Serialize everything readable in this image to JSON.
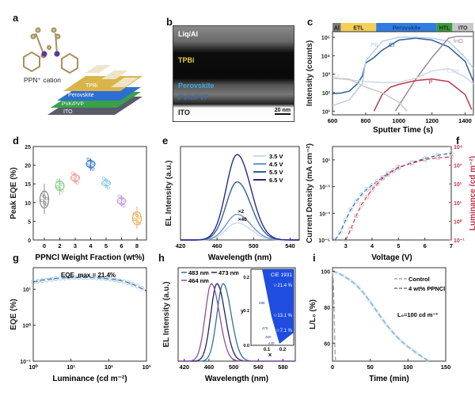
{
  "figure": {
    "panels": {
      "a": {
        "label": "a",
        "cation_label": "PPN⁺ cation",
        "layers": [
          "TPBi",
          "Perovskite",
          "PVK/PVP",
          "ITO"
        ],
        "layer_colors": [
          "#d9b44a",
          "#2d6fd0",
          "#3aa04a",
          "#5a5a6a"
        ]
      },
      "b": {
        "label": "b",
        "layers": [
          "Liq/Al",
          "TPBi",
          "Perovskite",
          "PVK/PVP",
          "ITO"
        ],
        "layer_text_colors": [
          "#ffffff",
          "#e8d23a",
          "#3fa6e0",
          "#3a7c3a",
          "#111111"
        ],
        "scalebar": "20 nm"
      },
      "c": {
        "label": "c",
        "layer_bar": [
          {
            "name": "Al",
            "color": "#7a7a7a"
          },
          {
            "name": "ETL",
            "color": "#f4cf57"
          },
          {
            "name": "Perovskite",
            "color": "#2f7de0"
          },
          {
            "name": "HTL",
            "color": "#3a9b3a"
          },
          {
            "name": "ITO",
            "color": "#c8c8c8"
          }
        ]
      },
      "d": {
        "label": "d"
      },
      "e": {
        "label": "e",
        "annotations": [
          "×2",
          "×40"
        ]
      },
      "f": {
        "label": "f"
      },
      "g": {
        "label": "g",
        "annotation": "EQE_max = 21.4%"
      },
      "h": {
        "label": "h",
        "inset": {
          "title": "CIE 1931",
          "xlabel": "x",
          "ylabel": "y",
          "xticks": [
            "0.1",
            "0.2"
          ],
          "yticks": [
            "0.0",
            "0.1",
            "0.2"
          ],
          "wavelength_marks": [
            "485",
            "470",
            "460",
            "440"
          ],
          "eqe_stars": [
            "21.4 %",
            "13.1 %",
            "7.1 %"
          ]
        }
      },
      "i": {
        "label": "i",
        "annotation": "L₀=100 cd m⁻²"
      }
    }
  },
  "chart_data": [
    {
      "id": "c",
      "type": "line",
      "xlabel": "Sputter Time (s)",
      "ylabel": "Intensity (counts)",
      "xlim": [
        600,
        1450
      ],
      "ylim_log10": [
        0.8,
        5.3
      ],
      "xticks": [
        "600",
        "800",
        "1000",
        "1200",
        "1400"
      ],
      "yticks": [
        "10¹",
        "10²",
        "10³",
        "10⁴",
        "10⁵"
      ],
      "series": [
        {
          "name": "Cl",
          "color": "#2a5e9a",
          "x": [
            600,
            650,
            700,
            750,
            780,
            800,
            850,
            900,
            1000,
            1100,
            1200,
            1300,
            1400,
            1450
          ],
          "y": [
            90,
            95,
            120,
            300,
            800,
            4000,
            8000,
            20000,
            70000,
            90000,
            70000,
            30000,
            5000,
            400
          ]
        },
        {
          "name": "Pb",
          "color": "#b8cde8",
          "x": [
            600,
            700,
            780,
            800,
            900,
            1000,
            1100,
            1200,
            1300,
            1400,
            1450
          ],
          "y": [
            20,
            40,
            300,
            5000,
            60000,
            100000,
            100000,
            90000,
            60000,
            8000,
            2000
          ]
        },
        {
          "name": "InO",
          "color": "#9a8aa0",
          "x": [
            980,
            1000,
            1100,
            1200,
            1300,
            1350,
            1450
          ],
          "y": [
            10,
            20,
            500,
            8000,
            90000,
            110000,
            110000
          ]
        },
        {
          "name": "C3H",
          "color": "#cfd6e6",
          "x": [
            600,
            700,
            800,
            900,
            1000,
            1100,
            1200,
            1300,
            1400,
            1450
          ],
          "y": [
            600,
            500,
            400,
            350,
            350,
            600,
            1500,
            2000,
            700,
            300
          ]
        },
        {
          "name": "P",
          "color": "#c0374a",
          "x": [
            850,
            900,
            950,
            1000,
            1100,
            1200,
            1300,
            1400,
            1440
          ],
          "y": [
            10,
            80,
            200,
            280,
            450,
            550,
            400,
            80,
            12
          ]
        },
        {
          "name": "Li",
          "color": "#c8c8c8",
          "x": [
            600,
            700,
            800,
            900,
            1000,
            1050
          ],
          "y": [
            600,
            550,
            200,
            100,
            30,
            10
          ]
        }
      ]
    },
    {
      "id": "d",
      "type": "scatter",
      "xlabel": "PPNCl Weight Fraction (wt%)",
      "ylabel": "Peak EQE (%)",
      "categories": [
        "0",
        "2",
        "3",
        "4",
        "5",
        "6",
        "8"
      ],
      "ylim": [
        0,
        25
      ],
      "yticks": [
        "0",
        "5",
        "10",
        "15",
        "20",
        "25"
      ],
      "series": [
        {
          "name": "0",
          "color": "#888888",
          "mean": 10.8,
          "min": 7,
          "max": 15
        },
        {
          "name": "2",
          "color": "#8fd08f",
          "mean": 14.5,
          "min": 12,
          "max": 16.5
        },
        {
          "name": "3",
          "color": "#f0a0a0",
          "mean": 16.6,
          "min": 15,
          "max": 18
        },
        {
          "name": "4",
          "color": "#3a7fd0",
          "mean": 20.3,
          "min": 18.5,
          "max": 21.8
        },
        {
          "name": "5",
          "color": "#8ec8ea",
          "mean": 15.2,
          "min": 14,
          "max": 16.5
        },
        {
          "name": "6",
          "color": "#c8a0e0",
          "mean": 10.4,
          "min": 9,
          "max": 12
        },
        {
          "name": "8",
          "color": "#f0b060",
          "mean": 5.8,
          "min": 3,
          "max": 9
        }
      ]
    },
    {
      "id": "e",
      "type": "line",
      "xlabel": "Wavelength (nm)",
      "ylabel": "EL Intensity (a.u.)",
      "xlim": [
        420,
        550
      ],
      "xticks": [
        "420",
        "460",
        "500",
        "540"
      ],
      "peak_nm": 482,
      "series": [
        {
          "name": "3.5 V",
          "color": "#c8dcee",
          "relative_peak": 0.2
        },
        {
          "name": "4.5 V",
          "color": "#6a9ac8",
          "relative_peak": 0.3
        },
        {
          "name": "5.5 V",
          "color": "#2f5f98",
          "relative_peak": 0.68
        },
        {
          "name": "6.5 V",
          "color": "#2a2a8a",
          "relative_peak": 1.0
        }
      ]
    },
    {
      "id": "f",
      "type": "line",
      "xlabel": "Voltage (V)",
      "ylabel": "Current Density (mA cm⁻²)",
      "ylabel_right": "Luminance (cd m⁻²)",
      "xlim": [
        2.5,
        7
      ],
      "xticks": [
        "3",
        "4",
        "5",
        "6",
        "7"
      ],
      "ylim_log10": [
        -5,
        2
      ],
      "yticks": [
        "10⁻⁵",
        "10⁻³",
        "10⁻¹",
        "10¹"
      ],
      "ylim_right_log10": [
        -1,
        4
      ],
      "yticks_right": [
        "10⁻¹",
        "10⁰",
        "10¹",
        "10²",
        "10³",
        "10⁴"
      ],
      "series": [
        {
          "name": "Current Density",
          "axis": "left",
          "color": "#2a5e9a",
          "x": [
            2.6,
            2.8,
            3.0,
            3.2,
            3.4,
            3.6,
            3.8,
            4.0,
            4.2,
            4.4,
            4.6,
            4.8,
            5.0,
            5.5,
            6.0,
            6.5,
            7.0
          ],
          "y_log10": [
            -5,
            -4.4,
            -3.5,
            -2.7,
            -2.1,
            -1.6,
            -1.2,
            -0.9,
            -0.6,
            -0.3,
            0,
            0.2,
            0.4,
            0.8,
            1.1,
            1.35,
            1.5
          ]
        },
        {
          "name": "Luminance",
          "axis": "right",
          "color": "#c0374a",
          "x": [
            3.0,
            3.2,
            3.4,
            3.6,
            3.8,
            4.0,
            4.2,
            4.4,
            4.6,
            4.8,
            5.0,
            5.5,
            6.0,
            6.5,
            7.0
          ],
          "y_log10": [
            -1,
            -0.4,
            0.3,
            0.9,
            1.3,
            1.7,
            2.0,
            2.3,
            2.5,
            2.7,
            2.9,
            3.1,
            3.3,
            3.4,
            3.45
          ]
        }
      ]
    },
    {
      "id": "g",
      "type": "line",
      "xlabel": "Luminance (cd m⁻²)",
      "ylabel": "EQE (%)",
      "xlim_log10": [
        0,
        3
      ],
      "xticks": [
        "10⁰",
        "10¹",
        "10²",
        "10³"
      ],
      "ylim_log10": [
        -1,
        1.6
      ],
      "yticks": [
        "10⁻¹",
        "10⁰",
        "10¹"
      ],
      "series": [
        {
          "name": "EQE",
          "color": "#8ab8e0",
          "x_log10": [
            0,
            0.3,
            0.6,
            0.9,
            1.2,
            1.5,
            1.8,
            2.1,
            2.4,
            2.7,
            3.0
          ],
          "y": [
            16,
            18.5,
            20,
            21,
            21.4,
            21.2,
            20.5,
            19,
            17,
            13,
            9
          ]
        }
      ]
    },
    {
      "id": "h",
      "type": "line",
      "xlabel": "Wavelength (nm)",
      "ylabel": "EL Intensity (a.u.)",
      "xlim": [
        410,
        600
      ],
      "xticks": [
        "420",
        "460",
        "500",
        "540",
        "580"
      ],
      "series": [
        {
          "name": "483 nm",
          "color": "#2f6fa0",
          "peak_nm": 483
        },
        {
          "name": "473 nm",
          "color": "#1e2460",
          "peak_nm": 473
        },
        {
          "name": "464 nm",
          "color": "#8a4f9a",
          "peak_nm": 464
        }
      ]
    },
    {
      "id": "i",
      "type": "line",
      "xlabel": "Time (min)",
      "ylabel": "L/L₀ (%)",
      "xlim": [
        0,
        150
      ],
      "ylim": [
        50,
        102
      ],
      "xticks": [
        "0",
        "50",
        "100",
        "150"
      ],
      "yticks": [
        "60",
        "80",
        "100"
      ],
      "series": [
        {
          "name": "Control",
          "color": "#aaaaaa",
          "x": [
            0,
            1,
            2,
            3,
            4
          ],
          "y": [
            100,
            95,
            80,
            60,
            50
          ]
        },
        {
          "name": "4 wt% PPNCl",
          "color": "#4f80b0",
          "x": [
            0,
            10,
            20,
            30,
            40,
            50,
            60,
            70,
            80,
            90,
            100,
            110,
            120,
            128
          ],
          "y": [
            100,
            98.5,
            96,
            93,
            88.5,
            83,
            77,
            71,
            66,
            61.5,
            58,
            55,
            52,
            50
          ]
        }
      ]
    }
  ]
}
